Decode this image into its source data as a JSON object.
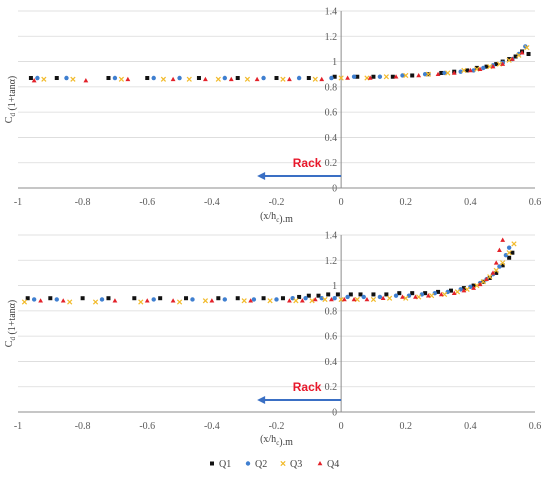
{
  "colors": {
    "Q1": "#111111",
    "Q2": "#3f7fd0",
    "Q3": "#f2bb2c",
    "Q4": "#e3222a",
    "arrow": "#3a6fc4",
    "rack_text": "#e8182b",
    "grid": "#d9d9d9",
    "axis": "#8c8c8c"
  },
  "legend": {
    "entries": [
      {
        "name": "Q1",
        "marker": "square"
      },
      {
        "name": "Q2",
        "marker": "circle"
      },
      {
        "name": "Q3",
        "marker": "cross"
      },
      {
        "name": "Q4",
        "marker": "triangle"
      }
    ],
    "placement": "bottom-center"
  },
  "chart_data": [
    {
      "type": "scatter",
      "title": "",
      "xlabel": "(x/h_c).m",
      "ylabel": "C_d (1+tanα)",
      "xlim": [
        -1,
        0.6
      ],
      "ylim": [
        0,
        1.4
      ],
      "xticks": [
        "-1",
        "-0.8",
        "-0.6",
        "-0.4",
        "-0.2",
        "0",
        "0.2",
        "0.4",
        "0.6"
      ],
      "yticks": [
        "0",
        "0.2",
        "0.4",
        "0.6",
        "0.8",
        "1",
        "1.2",
        "1.4"
      ],
      "grid": "horizontal",
      "annotation": {
        "text": "Rack",
        "arrow_from": [
          0,
          0.095
        ],
        "arrow_to": [
          -0.26,
          0.095
        ]
      },
      "series": [
        {
          "name": "Q1",
          "x": [
            -0.96,
            -0.88,
            -0.72,
            -0.6,
            -0.44,
            -0.32,
            -0.2,
            -0.1,
            -0.02,
            0.05,
            0.1,
            0.16,
            0.22,
            0.27,
            0.31,
            0.35,
            0.39,
            0.42,
            0.45,
            0.48,
            0.5,
            0.52,
            0.54,
            0.56,
            0.58
          ],
          "y": [
            0.87,
            0.87,
            0.87,
            0.87,
            0.87,
            0.87,
            0.87,
            0.87,
            0.88,
            0.88,
            0.88,
            0.88,
            0.89,
            0.9,
            0.91,
            0.92,
            0.93,
            0.95,
            0.96,
            0.98,
            1.0,
            1.02,
            1.04,
            1.08,
            1.06
          ]
        },
        {
          "name": "Q2",
          "x": [
            -0.94,
            -0.85,
            -0.7,
            -0.58,
            -0.5,
            -0.36,
            -0.24,
            -0.13,
            -0.03,
            0.04,
            0.12,
            0.19,
            0.26,
            0.32,
            0.37,
            0.41,
            0.44,
            0.47,
            0.5,
            0.53,
            0.55,
            0.57
          ],
          "y": [
            0.87,
            0.87,
            0.87,
            0.87,
            0.87,
            0.87,
            0.87,
            0.87,
            0.87,
            0.88,
            0.88,
            0.89,
            0.9,
            0.91,
            0.92,
            0.93,
            0.95,
            0.97,
            0.99,
            1.02,
            1.06,
            1.12
          ]
        },
        {
          "name": "Q3",
          "x": [
            -0.92,
            -0.83,
            -0.68,
            -0.55,
            -0.47,
            -0.38,
            -0.29,
            -0.18,
            -0.08,
            0.0,
            0.08,
            0.14,
            0.2,
            0.27,
            0.33,
            0.38,
            0.42,
            0.46,
            0.49,
            0.52,
            0.55,
            0.575
          ],
          "y": [
            0.86,
            0.86,
            0.86,
            0.86,
            0.86,
            0.86,
            0.86,
            0.86,
            0.86,
            0.87,
            0.87,
            0.88,
            0.89,
            0.9,
            0.91,
            0.93,
            0.94,
            0.96,
            0.98,
            1.01,
            1.05,
            1.11
          ]
        },
        {
          "name": "Q4",
          "x": [
            -0.95,
            -0.79,
            -0.66,
            -0.52,
            -0.42,
            -0.34,
            -0.26,
            -0.16,
            -0.06,
            0.02,
            0.09,
            0.17,
            0.24,
            0.3,
            0.35,
            0.4,
            0.43,
            0.47,
            0.5,
            0.53,
            0.56
          ],
          "y": [
            0.85,
            0.85,
            0.86,
            0.86,
            0.86,
            0.86,
            0.86,
            0.86,
            0.86,
            0.87,
            0.87,
            0.88,
            0.89,
            0.9,
            0.91,
            0.93,
            0.94,
            0.96,
            0.98,
            1.02,
            1.07
          ]
        }
      ]
    },
    {
      "type": "scatter",
      "title": "",
      "xlabel": "(x/h_c).m",
      "ylabel": "C_d (1+tanα)",
      "xlim": [
        -1,
        0.6
      ],
      "ylim": [
        0,
        1.4
      ],
      "xticks": [
        "-1",
        "-0.8",
        "-0.6",
        "-0.4",
        "-0.2",
        "0",
        "0.2",
        "0.4",
        "0.6"
      ],
      "yticks": [
        "0",
        "0.2",
        "0.4",
        "0.6",
        "0.8",
        "1",
        "1.2",
        "1.4"
      ],
      "grid": "horizontal",
      "annotation": {
        "text": "Rack",
        "arrow_from": [
          0,
          0.095
        ],
        "arrow_to": [
          -0.26,
          0.095
        ]
      },
      "series": [
        {
          "name": "Q1",
          "x": [
            -0.97,
            -0.9,
            -0.8,
            -0.72,
            -0.64,
            -0.56,
            -0.48,
            -0.38,
            -0.32,
            -0.24,
            -0.18,
            -0.13,
            -0.1,
            -0.07,
            -0.04,
            -0.01,
            0.03,
            0.06,
            0.1,
            0.14,
            0.18,
            0.22,
            0.26,
            0.3,
            0.34,
            0.38,
            0.41,
            0.44,
            0.46,
            0.48,
            0.5,
            0.52,
            0.53
          ],
          "y": [
            0.9,
            0.9,
            0.9,
            0.9,
            0.9,
            0.9,
            0.9,
            0.9,
            0.9,
            0.9,
            0.9,
            0.91,
            0.92,
            0.92,
            0.93,
            0.93,
            0.93,
            0.93,
            0.93,
            0.93,
            0.94,
            0.94,
            0.94,
            0.95,
            0.96,
            0.98,
            1.0,
            1.03,
            1.06,
            1.1,
            1.16,
            1.22,
            1.26
          ]
        },
        {
          "name": "Q2",
          "x": [
            -0.95,
            -0.88,
            -0.74,
            -0.58,
            -0.46,
            -0.36,
            -0.27,
            -0.2,
            -0.15,
            -0.11,
            -0.06,
            -0.02,
            0.02,
            0.07,
            0.12,
            0.17,
            0.21,
            0.25,
            0.29,
            0.33,
            0.37,
            0.4,
            0.43,
            0.45,
            0.47,
            0.49,
            0.51,
            0.52
          ],
          "y": [
            0.89,
            0.89,
            0.89,
            0.89,
            0.89,
            0.89,
            0.89,
            0.89,
            0.9,
            0.9,
            0.9,
            0.9,
            0.91,
            0.91,
            0.91,
            0.92,
            0.92,
            0.93,
            0.94,
            0.95,
            0.97,
            0.99,
            1.02,
            1.05,
            1.09,
            1.15,
            1.24,
            1.3
          ]
        },
        {
          "name": "Q3",
          "x": [
            -0.98,
            -0.84,
            -0.76,
            -0.62,
            -0.5,
            -0.42,
            -0.3,
            -0.22,
            -0.14,
            -0.09,
            -0.05,
            0.0,
            0.05,
            0.1,
            0.15,
            0.2,
            0.24,
            0.28,
            0.32,
            0.36,
            0.39,
            0.42,
            0.44,
            0.46,
            0.48,
            0.5,
            0.52,
            0.535
          ],
          "y": [
            0.87,
            0.87,
            0.87,
            0.87,
            0.87,
            0.88,
            0.88,
            0.88,
            0.88,
            0.88,
            0.89,
            0.89,
            0.89,
            0.89,
            0.9,
            0.9,
            0.91,
            0.92,
            0.93,
            0.95,
            0.97,
            1.0,
            1.03,
            1.07,
            1.12,
            1.18,
            1.26,
            1.33
          ]
        },
        {
          "name": "Q4",
          "x": [
            -0.93,
            -0.86,
            -0.7,
            -0.6,
            -0.52,
            -0.4,
            -0.28,
            -0.16,
            -0.12,
            -0.08,
            -0.03,
            0.01,
            0.04,
            0.08,
            0.13,
            0.19,
            0.23,
            0.27,
            0.31,
            0.35,
            0.38,
            0.41,
            0.43,
            0.45,
            0.47,
            0.48,
            0.49,
            0.5
          ],
          "y": [
            0.88,
            0.88,
            0.88,
            0.88,
            0.88,
            0.88,
            0.88,
            0.88,
            0.88,
            0.89,
            0.89,
            0.89,
            0.89,
            0.89,
            0.9,
            0.91,
            0.91,
            0.92,
            0.93,
            0.94,
            0.96,
            0.98,
            1.01,
            1.05,
            1.1,
            1.18,
            1.28,
            1.36
          ]
        }
      ]
    }
  ]
}
